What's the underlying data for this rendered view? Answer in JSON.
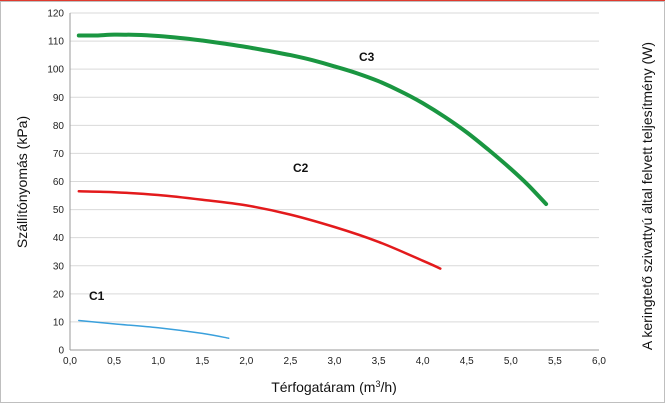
{
  "chart_data": {
    "type": "line",
    "xlabel_main": "Térfogatáram (m",
    "xlabel_sup": "3",
    "xlabel_end": "/h)",
    "ylabel": "Szállítónyomás (kPa)",
    "ylabel_right": "A keringtető szivattyú által felvett teljesítmény (W)",
    "xlim": [
      0,
      6
    ],
    "ylim": [
      0,
      120
    ],
    "x_ticks": [
      0,
      0.5,
      1,
      1.5,
      2,
      2.5,
      3,
      3.5,
      4,
      4.5,
      5,
      5.5,
      6
    ],
    "x_tick_labels": [
      "0,0",
      "0,5",
      "1,0",
      "1,5",
      "2,0",
      "2,5",
      "3,0",
      "3,5",
      "4,0",
      "4,5",
      "5,0",
      "5,5",
      "6,0"
    ],
    "y_ticks": [
      0,
      10,
      20,
      30,
      40,
      50,
      60,
      70,
      80,
      90,
      100,
      110,
      120
    ],
    "y_tick_labels": [
      "0",
      "10",
      "20",
      "30",
      "40",
      "50",
      "60",
      "70",
      "80",
      "90",
      "100",
      "110",
      "120"
    ],
    "grid": "horizontal",
    "series": [
      {
        "name": "C3",
        "color": "#1a9641",
        "x": [
          0.1,
          0.3,
          0.5,
          0.75,
          1.0,
          1.25,
          1.5,
          1.75,
          2.0,
          2.25,
          2.5,
          2.75,
          3.0,
          3.25,
          3.5,
          3.75,
          4.0,
          4.25,
          4.5,
          4.75,
          5.0,
          5.2,
          5.4
        ],
        "values": [
          112,
          112,
          112.3,
          112.2,
          111.8,
          111.1,
          110.2,
          109.1,
          107.9,
          106.5,
          105,
          103.2,
          101,
          98.6,
          95.7,
          92.1,
          87.9,
          83,
          77.5,
          71.2,
          64.5,
          58.6,
          52
        ]
      },
      {
        "name": "C2",
        "color": "#e31a1c",
        "x": [
          0.1,
          0.5,
          1.0,
          1.5,
          2.0,
          2.5,
          3.0,
          3.5,
          4.0,
          4.2
        ],
        "values": [
          56.5,
          56.2,
          55.2,
          53.5,
          51.5,
          48.2,
          43.8,
          38.5,
          31.8,
          29
        ]
      },
      {
        "name": "C1",
        "color": "#3aa0dc",
        "x": [
          0.1,
          0.5,
          1.0,
          1.5,
          1.8
        ],
        "values": [
          10.5,
          9.3,
          7.9,
          5.9,
          4.2
        ]
      }
    ]
  }
}
